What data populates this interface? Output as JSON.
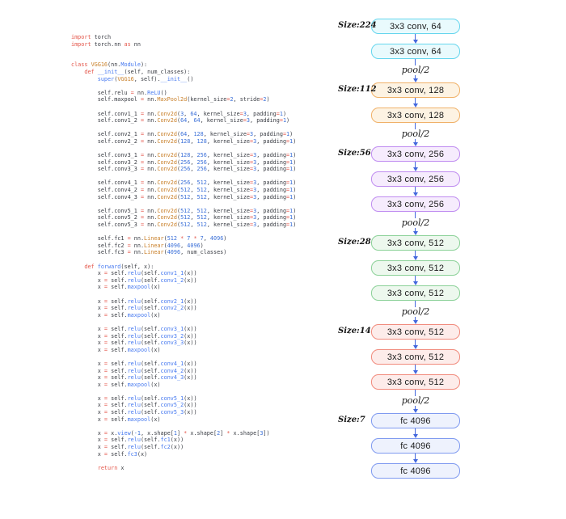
{
  "code_panel": {
    "lines": [
      "import torch",
      "import torch.nn as nn",
      "",
      "",
      "class VGG16(nn.Module):",
      "    def __init__(self, num_classes):",
      "        super(VGG16, self).__init__()",
      "",
      "        self.relu = nn.ReLU()",
      "        self.maxpool = nn.MaxPool2d(kernel_size=2, stride=2)",
      "",
      "        self.conv1_1 = nn.Conv2d(3, 64, kernel_size=3, padding=1)",
      "        self.conv1_2 = nn.Conv2d(64, 64, kernel_size=3, padding=1)",
      "",
      "        self.conv2_1 = nn.Conv2d(64, 128, kernel_size=3, padding=1)",
      "        self.conv2_2 = nn.Conv2d(128, 128, kernel_size=3, padding=1)",
      "",
      "        self.conv3_1 = nn.Conv2d(128, 256, kernel_size=3, padding=1)",
      "        self.conv3_2 = nn.Conv2d(256, 256, kernel_size=3, padding=1)",
      "        self.conv3_3 = nn.Conv2d(256, 256, kernel_size=3, padding=1)",
      "",
      "        self.conv4_1 = nn.Conv2d(256, 512, kernel_size=3, padding=1)",
      "        self.conv4_2 = nn.Conv2d(512, 512, kernel_size=3, padding=1)",
      "        self.conv4_3 = nn.Conv2d(512, 512, kernel_size=3, padding=1)",
      "",
      "        self.conv5_1 = nn.Conv2d(512, 512, kernel_size=3, padding=1)",
      "        self.conv5_2 = nn.Conv2d(512, 512, kernel_size=3, padding=1)",
      "        self.conv5_3 = nn.Conv2d(512, 512, kernel_size=3, padding=1)",
      "",
      "        self.fc1 = nn.Linear(512 * 7 * 7, 4096)",
      "        self.fc2 = nn.Linear(4096, 4096)",
      "        self.fc3 = nn.Linear(4096, num_classes)",
      "",
      "    def forward(self, x):",
      "        x = self.relu(self.conv1_1(x))",
      "        x = self.relu(self.conv1_2(x))",
      "        x = self.maxpool(x)",
      "",
      "        x = self.relu(self.conv2_1(x))",
      "        x = self.relu(self.conv2_2(x))",
      "        x = self.maxpool(x)",
      "",
      "        x = self.relu(self.conv3_1(x))",
      "        x = self.relu(self.conv3_2(x))",
      "        x = self.relu(self.conv3_3(x))",
      "        x = self.maxpool(x)",
      "",
      "        x = self.relu(self.conv4_1(x))",
      "        x = self.relu(self.conv4_2(x))",
      "        x = self.relu(self.conv4_3(x))",
      "        x = self.maxpool(x)",
      "",
      "        x = self.relu(self.conv5_1(x))",
      "        x = self.relu(self.conv5_2(x))",
      "        x = self.relu(self.conv5_3(x))",
      "        x = self.maxpool(x)",
      "",
      "        x = x.view(-1, x.shape[1] * x.shape[2] * x.shape[3])",
      "        x = self.relu(self.fc1(x))",
      "        x = self.relu(self.fc2(x))",
      "        x = self.fc3(x)",
      "",
      "        return x"
    ],
    "syntax_colors": {
      "plain": "#3a3d44",
      "keyword": "#e4574b",
      "classname": "#c9802a",
      "call": "#4679f0",
      "number": "#3a6fd8",
      "operator": "#e4574b"
    }
  },
  "diagram": {
    "arrow_color": "#4468dd",
    "pool_label": "pool/2",
    "groups": [
      {
        "size_label": "Size:224",
        "border": "#66d6ee",
        "fill": "#e9fafd",
        "boxes": [
          "3x3 conv, 64",
          "3x3 conv, 64"
        ]
      },
      {
        "size_label": "Size:112",
        "border": "#f0b168",
        "fill": "#fdf3e3",
        "boxes": [
          "3x3 conv, 128",
          "3x3 conv, 128"
        ]
      },
      {
        "size_label": "Size:56",
        "border": "#bf8cf0",
        "fill": "#f6ecfd",
        "boxes": [
          "3x3 conv, 256",
          "3x3 conv, 256",
          "3x3 conv, 256"
        ]
      },
      {
        "size_label": "Size:28",
        "border": "#8bd198",
        "fill": "#edf8ee",
        "boxes": [
          "3x3 conv, 512",
          "3x3 conv, 512",
          "3x3 conv, 512"
        ]
      },
      {
        "size_label": "Size:14",
        "border": "#f18a7c",
        "fill": "#fdecea",
        "boxes": [
          "3x3 conv, 512",
          "3x3 conv, 512",
          "3x3 conv, 512"
        ]
      },
      {
        "size_label": "Size:7",
        "border": "#7f9af0",
        "fill": "#eef2fd",
        "boxes": [
          "fc 4096",
          "fc 4096",
          "fc 4096"
        ]
      }
    ]
  }
}
